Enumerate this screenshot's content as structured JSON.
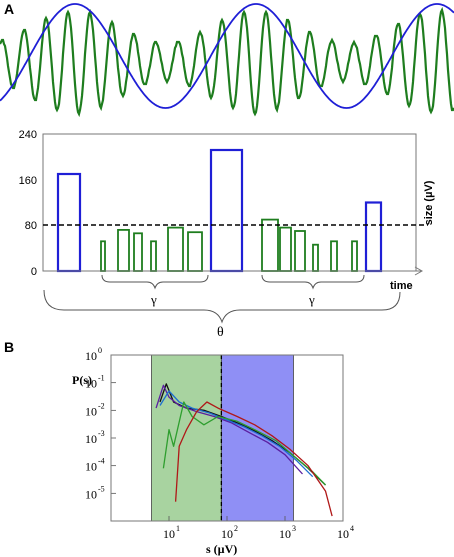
{
  "panel_a": {
    "label": "A",
    "y_ticks": [
      "0",
      "80",
      "160",
      "240"
    ],
    "y_axis_label": "size (µV)",
    "x_axis_label": "time",
    "gamma_label_1": "γ",
    "gamma_label_2": "γ",
    "theta_label": "θ"
  },
  "panel_b": {
    "label": "B",
    "y_axis_label": "P(s)",
    "x_axis_label": "s (µV)"
  },
  "colors": {
    "blue": "#1f1fd6",
    "green": "#1e7d1e",
    "green_band": "#a8d3a0",
    "blue_band": "#8f8ff5",
    "dashed": "#000000"
  },
  "chart_data": [
    {
      "type": "line",
      "title": "",
      "description_ref": "panel A top trace",
      "series": [
        {
          "name": "",
          "kind": "theta",
          "color": "#1f1fd6"
        },
        {
          "name": "",
          "kind": "gamma",
          "color": "#1e7d1e"
        }
      ]
    },
    {
      "type": "bar",
      "title": "",
      "xlabel": "time",
      "ylabel": "size (µV)",
      "ylim": [
        0,
        240
      ],
      "threshold": 80,
      "bars": [
        {
          "value": 170,
          "series": "theta"
        },
        {
          "value": 52,
          "series": "gamma"
        },
        {
          "value": 72,
          "series": "gamma"
        },
        {
          "value": 66,
          "series": "gamma"
        },
        {
          "value": 52,
          "series": "gamma"
        },
        {
          "value": 76,
          "series": "gamma"
        },
        {
          "value": 68,
          "series": "gamma"
        },
        {
          "value": 212,
          "series": "theta"
        },
        {
          "value": 90,
          "series": "gamma"
        },
        {
          "value": 76,
          "series": "gamma"
        },
        {
          "value": 70,
          "series": "gamma"
        },
        {
          "value": 46,
          "series": "gamma"
        },
        {
          "value": 52,
          "series": "gamma"
        },
        {
          "value": 52,
          "series": "gamma"
        },
        {
          "value": 120,
          "series": "theta"
        }
      ]
    },
    {
      "type": "line",
      "title": "",
      "xlabel": "s (µV)",
      "ylabel": "P(s)",
      "xscale": "log",
      "yscale": "log",
      "xlim": [
        1,
        10000
      ],
      "ylim": [
        1e-06,
        1
      ],
      "x_ticks": [
        "10^1",
        "10^2",
        "10^3",
        "10^4"
      ],
      "y_ticks": [
        "10^0",
        "10^-1",
        "10^-2",
        "10^-3",
        "10^-4",
        "10^-5"
      ],
      "bands": [
        {
          "from": 5,
          "to": 80,
          "color": "#a8d3a0"
        },
        {
          "from": 80,
          "to": 1400,
          "color": "#8f8ff5"
        }
      ],
      "divider_x": 80,
      "series": [
        {
          "name": "",
          "color": "#111111",
          "x": [
            7,
            9,
            12,
            20,
            40,
            80,
            150,
            300,
            600,
            1200,
            2500,
            5000
          ],
          "y": [
            0.02,
            0.09,
            0.02,
            0.012,
            0.01,
            0.006,
            0.0035,
            0.0018,
            0.0008,
            0.0003,
            8e-05,
            2e-05
          ]
        },
        {
          "name": "",
          "color": "#5a1ea0",
          "x": [
            6,
            8,
            10,
            15,
            30,
            60,
            120,
            250,
            500,
            1000,
            2000
          ],
          "y": [
            0.012,
            0.08,
            0.03,
            0.015,
            0.009,
            0.006,
            0.0035,
            0.0015,
            0.0007,
            0.00025,
            5e-05
          ]
        },
        {
          "name": "",
          "color": "#1e6fd0",
          "x": [
            7,
            10,
            15,
            25,
            50,
            100,
            200,
            400,
            800,
            1600,
            3000
          ],
          "y": [
            0.015,
            0.05,
            0.02,
            0.012,
            0.008,
            0.0045,
            0.0025,
            0.0012,
            0.0005,
            0.00015,
            4e-05
          ]
        },
        {
          "name": "",
          "color": "#2e9e2e",
          "x": [
            8,
            10,
            12,
            18,
            25,
            40,
            70,
            150,
            300,
            700,
            1500,
            3000,
            5000
          ],
          "y": [
            8e-05,
            0.002,
            0.0005,
            0.02,
            0.006,
            0.003,
            0.006,
            0.004,
            0.002,
            0.0008,
            0.0002,
            6e-05,
            2e-05
          ]
        },
        {
          "name": "",
          "color": "#b01818",
          "x": [
            13,
            15,
            20,
            30,
            45,
            70,
            150,
            300,
            600,
            1200,
            2500,
            5000,
            6500
          ],
          "y": [
            5e-06,
            0.0005,
            0.002,
            0.009,
            0.02,
            0.012,
            0.006,
            0.003,
            0.0012,
            0.0004,
            0.0001,
            1.2e-05,
            1.5e-06
          ]
        }
      ]
    }
  ]
}
